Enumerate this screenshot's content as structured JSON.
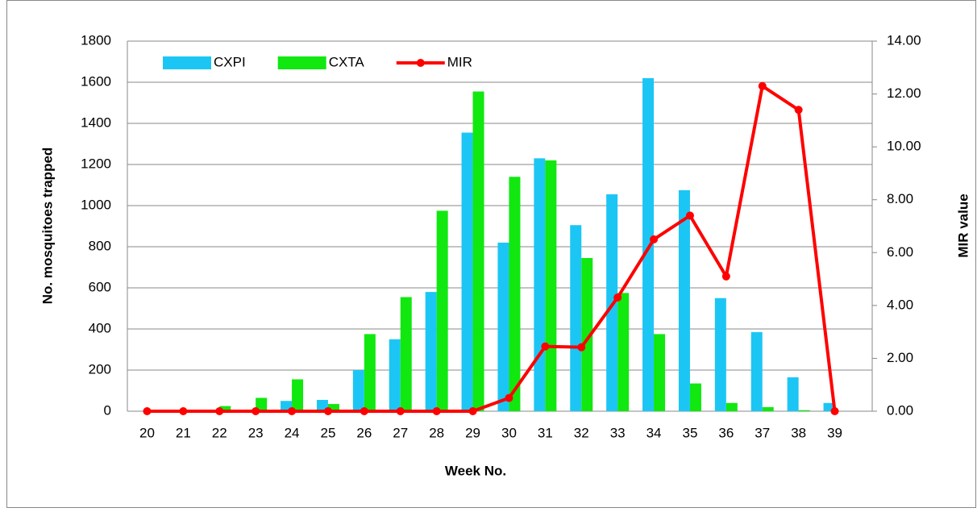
{
  "chart_data": {
    "type": "bar",
    "categories": [
      "20",
      "21",
      "22",
      "23",
      "24",
      "25",
      "26",
      "27",
      "28",
      "29",
      "30",
      "31",
      "32",
      "33",
      "34",
      "35",
      "36",
      "37",
      "38",
      "39"
    ],
    "series": [
      {
        "name": "CXPI",
        "color": "#1cc6f4",
        "values": [
          0,
          0,
          5,
          5,
          50,
          55,
          200,
          350,
          580,
          1355,
          820,
          1230,
          905,
          1055,
          1620,
          1075,
          550,
          385,
          165,
          40
        ]
      },
      {
        "name": "CXTA",
        "color": "#10e810",
        "values": [
          0,
          0,
          25,
          65,
          155,
          35,
          375,
          555,
          975,
          1555,
          1140,
          1220,
          745,
          575,
          375,
          135,
          40,
          20,
          5,
          0
        ]
      },
      {
        "name": "MIR",
        "color": "#ff0000",
        "type": "line",
        "axis": "y2",
        "values": [
          0,
          0,
          0,
          0,
          0,
          0,
          0,
          0,
          0,
          0,
          0.5,
          2.45,
          2.42,
          4.3,
          6.5,
          7.4,
          5.1,
          12.3,
          11.4,
          0
        ]
      }
    ],
    "xlabel": "Week No.",
    "ylabel": "No. mosquitoes trapped",
    "y2label": "MIR value",
    "ylim": [
      0,
      1800
    ],
    "yticks": [
      0,
      200,
      400,
      600,
      800,
      1000,
      1200,
      1400,
      1600,
      1800
    ],
    "y2lim": [
      0,
      14
    ],
    "y2ticks": [
      {
        "value": 0,
        "label": "0.00"
      },
      {
        "value": 2,
        "label": "2.00"
      },
      {
        "value": 4,
        "label": "4.00"
      },
      {
        "value": 6,
        "label": "6.00"
      },
      {
        "value": 8,
        "label": "8.00"
      },
      {
        "value": 10,
        "label": "10.00"
      },
      {
        "value": 12,
        "label": "12.00"
      },
      {
        "value": 14,
        "label": "14.00"
      }
    ],
    "grid": true,
    "legend": "top-left"
  }
}
